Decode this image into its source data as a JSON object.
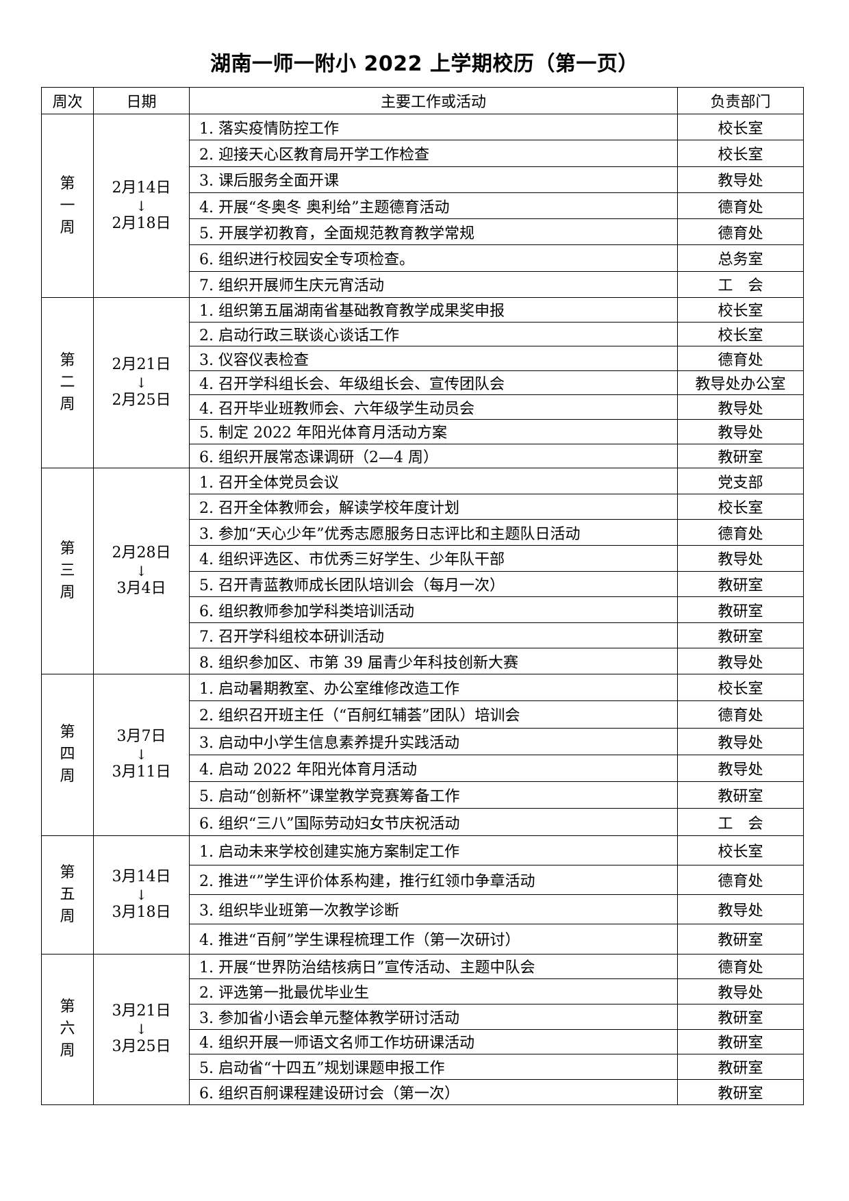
{
  "title": "湖南一师一附小 2022 上学期校历（第一页）",
  "headers": [
    "周次",
    "日期",
    "主要工作或活动",
    "负责部门"
  ],
  "arrow_icon": "down-arrow",
  "weeks": [
    {
      "week": "第一周",
      "start": "2月14日",
      "end": "2月18日",
      "rows": [
        {
          "activity": "1. 落实疫情防控工作",
          "dept": "校长室"
        },
        {
          "activity": "2. 迎接天心区教育局开学工作检查",
          "dept": "校长室"
        },
        {
          "activity": "3. 课后服务全面开课",
          "dept": "教导处"
        },
        {
          "activity": "4. 开展“冬奥冬 奥利给”主题德育活动",
          "dept": "德育处"
        },
        {
          "activity": "5. 开展学初教育，全面规范教育教学常规",
          "dept": "德育处"
        },
        {
          "activity": "6. 组织进行校园安全专项检查。",
          "dept": "总务室"
        },
        {
          "activity": "7. 组织开展师生庆元宵活动",
          "dept": "工　会"
        }
      ]
    },
    {
      "week": "第二周",
      "start": "2月21日",
      "end": "2月25日",
      "rows": [
        {
          "activity": "1. 组织第五届湖南省基础教育教学成果奖申报",
          "dept": "校长室"
        },
        {
          "activity": "2. 启动行政三联谈心谈话工作",
          "dept": "校长室"
        },
        {
          "activity": "3. 仪容仪表检查",
          "dept": "德育处"
        },
        {
          "activity": "4. 召开学科组长会、年级组长会、宣传团队会",
          "dept": "教导处办公室"
        },
        {
          "activity": "4. 召开毕业班教师会、六年级学生动员会",
          "dept": "教导处"
        },
        {
          "activity": "5. 制定 2022 年阳光体育月活动方案",
          "dept": "教导处"
        },
        {
          "activity": "6. 组织开展常态课调研（2—4 周）",
          "dept": "教研室"
        }
      ]
    },
    {
      "week": "第三周",
      "start": "2月28日",
      "end": "3月4日",
      "rows": [
        {
          "activity": "1. 召开全体党员会议",
          "dept": "党支部"
        },
        {
          "activity": "2. 召开全体教师会，解读学校年度计划",
          "dept": "校长室"
        },
        {
          "activity": "3. 参加“天心少年”优秀志愿服务日志评比和主题队日活动",
          "dept": "德育处"
        },
        {
          "activity": "4. 组织评选区、市优秀三好学生、少年队干部",
          "dept": "教导处"
        },
        {
          "activity": "5. 召开青蓝教师成长团队培训会（每月一次）",
          "dept": "教研室"
        },
        {
          "activity": "6. 组织教师参加学科类培训活动",
          "dept": "教研室"
        },
        {
          "activity": "7. 召开学科组校本研训活动",
          "dept": "教研室"
        },
        {
          "activity": "8. 组织参加区、市第 39 届青少年科技创新大赛",
          "dept": "教导处"
        }
      ]
    },
    {
      "week": "第四周",
      "start": "3月7日",
      "end": "3月11日",
      "rows": [
        {
          "activity": "1. 启动暑期教室、办公室维修改造工作",
          "dept": "校长室"
        },
        {
          "activity": "2.  组织召开班主任（“百舸红辅荟”团队）培训会",
          "dept": "德育处"
        },
        {
          "activity": "3. 启动中小学生信息素养提升实践活动",
          "dept": "教导处"
        },
        {
          "activity": "4. 启动 2022 年阳光体育月活动",
          "dept": "教导处"
        },
        {
          "activity": "5. 启动“创新杯”课堂教学竞赛筹备工作",
          "dept": "教研室"
        },
        {
          "activity": "6.  组织“三八”国际劳动妇女节庆祝活动",
          "dept": "工　会"
        }
      ]
    },
    {
      "week": "第五周",
      "start": "3月14日",
      "end": "3月18日",
      "rows": [
        {
          "activity": "1. 启动未来学校创建实施方案制定工作",
          "dept": "校长室"
        },
        {
          "activity": "2. 推进“”学生评价体系构建，推行红领巾争章活动",
          "dept": "德育处"
        },
        {
          "activity": "3. 组织毕业班第一次教学诊断",
          "dept": "教导处"
        },
        {
          "activity": "4. 推进“百舸”学生课程梳理工作（第一次研讨）",
          "dept": "教研室"
        }
      ]
    },
    {
      "week": "第六周",
      "start": "3月21日",
      "end": "3月25日",
      "rows": [
        {
          "activity": "1. 开展“世界防治结核病日”宣传活动、主题中队会",
          "dept": "德育处"
        },
        {
          "activity": "2. 评选第一批最优毕业生",
          "dept": "教导处"
        },
        {
          "activity": "3. 参加省小语会单元整体教学研讨活动",
          "dept": "教研室"
        },
        {
          "activity": "4. 组织开展一师语文名师工作坊研课活动",
          "dept": "教研室"
        },
        {
          "activity": "5. 启动省“十四五”规划课题申报工作",
          "dept": "教研室"
        },
        {
          "activity": "6. 组织百舸课程建设研讨会（第一次）",
          "dept": "教研室"
        }
      ]
    }
  ]
}
